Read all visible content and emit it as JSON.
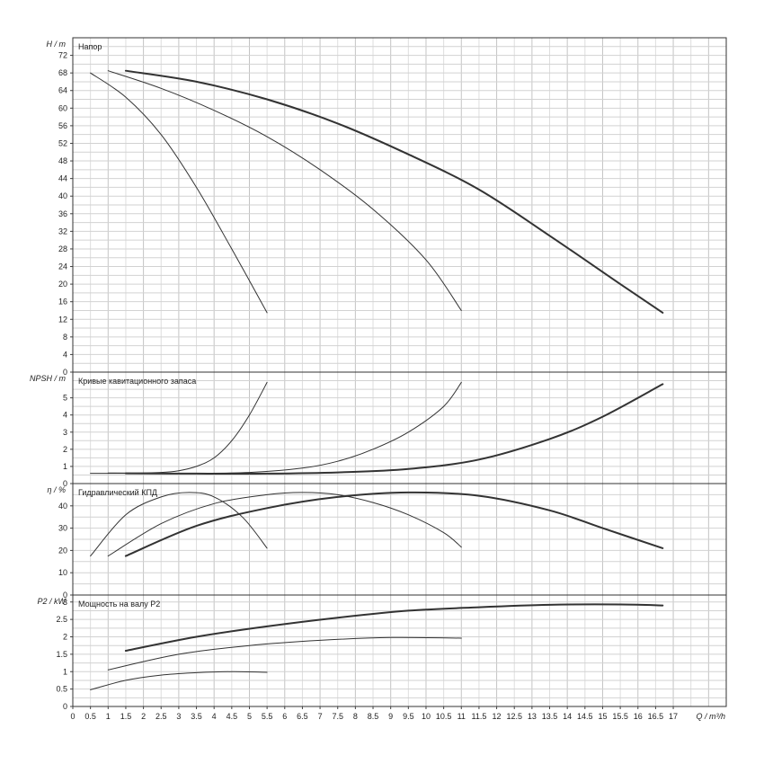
{
  "chart_data": [
    {
      "type": "line",
      "title": "Напор",
      "ylabel": "H / m",
      "xlabel": "Q / m³/h",
      "xlim": [
        0,
        18.5
      ],
      "ylim": [
        0,
        76
      ],
      "grid": true,
      "y_ticks": [
        "0",
        "4",
        "8",
        "12",
        "16",
        "20",
        "24",
        "28",
        "32",
        "36",
        "40",
        "44",
        "48",
        "52",
        "56",
        "60",
        "64",
        "68",
        "72"
      ],
      "series": [
        {
          "x": [
            0.5,
            1.5,
            2.5,
            3.5,
            4.5,
            5.5
          ],
          "y": [
            68,
            62.5,
            54,
            42,
            28,
            13.5
          ]
        },
        {
          "x": [
            1.0,
            2.5,
            4.0,
            5.5,
            7.0,
            8.5,
            10.0,
            11.0
          ],
          "y": [
            68.5,
            64.5,
            59.5,
            53.5,
            46,
            37,
            25.5,
            14
          ]
        },
        {
          "x": [
            1.5,
            3.5,
            5.5,
            7.5,
            9.5,
            11.5,
            13.5,
            15.5,
            16.7
          ],
          "y": [
            68.5,
            66,
            62,
            56.5,
            49.5,
            41.5,
            31,
            20,
            13.5
          ]
        }
      ]
    },
    {
      "type": "line",
      "title": "Кривые кавитационного запаса",
      "ylabel": "NPSH / m",
      "ylim": [
        0,
        6.5
      ],
      "grid": true,
      "y_ticks": [
        "0",
        "1",
        "2",
        "3",
        "4",
        "5"
      ],
      "series": [
        {
          "x": [
            0.5,
            1.5,
            2.5,
            3.0,
            3.5,
            4.0,
            4.5,
            5.0,
            5.5
          ],
          "y": [
            0.6,
            0.6,
            0.65,
            0.75,
            1.0,
            1.5,
            2.5,
            4.0,
            5.9
          ]
        },
        {
          "x": [
            1.0,
            3.0,
            5.0,
            6.5,
            7.5,
            8.5,
            9.5,
            10.5,
            11.0
          ],
          "y": [
            0.62,
            0.6,
            0.65,
            0.9,
            1.3,
            2.0,
            3.0,
            4.5,
            5.9
          ]
        },
        {
          "x": [
            1.5,
            3.5,
            5.5,
            7.5,
            9.5,
            11.5,
            13.5,
            15.0,
            16.7
          ],
          "y": [
            0.6,
            0.58,
            0.58,
            0.65,
            0.85,
            1.4,
            2.6,
            3.9,
            5.8
          ]
        }
      ]
    },
    {
      "type": "line",
      "title": "Гидравлический КПД",
      "ylabel": "η / %",
      "ylim": [
        0,
        50
      ],
      "grid": true,
      "y_ticks": [
        "0",
        "10",
        "20",
        "30",
        "40"
      ],
      "series": [
        {
          "x": [
            0.5,
            1.5,
            2.5,
            3.3,
            4.0,
            4.8,
            5.5
          ],
          "y": [
            17.5,
            36,
            44,
            46,
            44,
            35,
            21
          ]
        },
        {
          "x": [
            1.0,
            2.5,
            4.0,
            5.5,
            6.5,
            7.5,
            8.5,
            9.5,
            10.5,
            11.0
          ],
          "y": [
            17.5,
            32,
            41,
            45,
            46,
            45,
            41.5,
            36,
            28,
            21.5
          ]
        },
        {
          "x": [
            1.5,
            3.5,
            5.5,
            7.5,
            9.5,
            11.5,
            13.5,
            15.0,
            16.7
          ],
          "y": [
            17.5,
            31,
            39,
            44,
            46,
            44.5,
            38,
            30,
            21
          ]
        }
      ]
    },
    {
      "type": "line",
      "title": "Мощность на валу P2",
      "ylabel": "P2 / kW",
      "ylim": [
        0,
        3.2
      ],
      "grid": true,
      "y_ticks": [
        "0",
        "0.5",
        "1",
        "1.5",
        "2",
        "2.5",
        "3"
      ],
      "x_ticks": [
        "0",
        "0.5",
        "1",
        "1.5",
        "2",
        "2.5",
        "3",
        "3.5",
        "4",
        "4.5",
        "5",
        "5.5",
        "6",
        "6.5",
        "7",
        "7.5",
        "8",
        "8.5",
        "9",
        "9.5",
        "10",
        "10.5",
        "11",
        "11.5",
        "12",
        "12.5",
        "13",
        "13.5",
        "14",
        "14.5",
        "15",
        "15.5",
        "16",
        "16.5",
        "17"
      ],
      "series": [
        {
          "x": [
            0.5,
            1.5,
            2.5,
            3.5,
            4.5,
            5.5
          ],
          "y": [
            0.48,
            0.75,
            0.9,
            0.97,
            1.0,
            0.98
          ]
        },
        {
          "x": [
            1.0,
            3.0,
            5.0,
            7.0,
            9.0,
            11.0
          ],
          "y": [
            1.05,
            1.5,
            1.75,
            1.9,
            1.98,
            1.96
          ]
        },
        {
          "x": [
            1.5,
            3.5,
            5.5,
            7.5,
            9.5,
            11.5,
            13.5,
            15.5,
            16.7
          ],
          "y": [
            1.6,
            2.0,
            2.3,
            2.55,
            2.75,
            2.85,
            2.92,
            2.93,
            2.9
          ]
        }
      ]
    }
  ]
}
